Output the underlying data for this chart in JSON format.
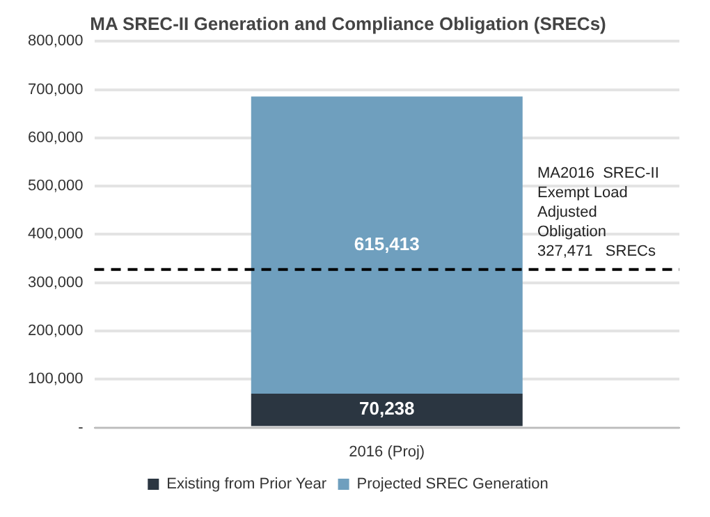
{
  "chart_data": {
    "type": "bar",
    "title": "MA SREC-II Generation and Compliance Obligation (SRECs)",
    "categories": [
      "2016 (Proj)"
    ],
    "stacked": true,
    "series": [
      {
        "name": "Existing from Prior Year",
        "color": "#2b3641",
        "values": [
          70238
        ],
        "value_labels": [
          "70,238"
        ]
      },
      {
        "name": "Projected SREC Generation",
        "color": "#6f9fbe",
        "values": [
          615413
        ],
        "value_labels": [
          "615,413"
        ]
      }
    ],
    "ylim": [
      0,
      800000
    ],
    "yticks": [
      {
        "value": 0,
        "label": "-"
      },
      {
        "value": 100000,
        "label": "100,000"
      },
      {
        "value": 200000,
        "label": "200,000"
      },
      {
        "value": 300000,
        "label": "300,000"
      },
      {
        "value": 400000,
        "label": "400,000"
      },
      {
        "value": 500000,
        "label": "500,000"
      },
      {
        "value": 600000,
        "label": "600,000"
      },
      {
        "value": 700000,
        "label": "700,000"
      },
      {
        "value": 800000,
        "label": "800,000"
      }
    ],
    "grid": "y",
    "legend": "bottom",
    "ref_lines": [
      {
        "axis": "y",
        "value": 327471,
        "label": "MA2016  SREC-II Exempt Load Adjusted Obligation 327,471   SRECs",
        "color": "#000000",
        "line_style": "dashed"
      }
    ]
  }
}
